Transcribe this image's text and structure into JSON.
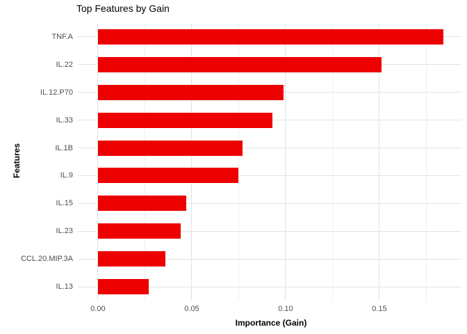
{
  "chart_data": {
    "type": "bar",
    "orientation": "horizontal",
    "title": "Top Features by Gain",
    "xlabel": "Importance (Gain)",
    "ylabel": "Features",
    "categories": [
      "TNF.A",
      "IL.22",
      "IL.12.P70",
      "IL.33",
      "IL.1B",
      "IL.9",
      "IL.15",
      "IL.23",
      "CCL.20.MIP.3A",
      "IL.13"
    ],
    "values": [
      0.184,
      0.151,
      0.099,
      0.093,
      0.077,
      0.075,
      0.047,
      0.044,
      0.036,
      0.027
    ],
    "x_ticks": [
      {
        "value": 0.0,
        "label": "0.00"
      },
      {
        "value": 0.05,
        "label": "0.05"
      },
      {
        "value": 0.1,
        "label": "0.10"
      },
      {
        "value": 0.15,
        "label": "0.15"
      }
    ],
    "x_minor_ticks": [
      0.025,
      0.075,
      0.125,
      0.175
    ],
    "xlim": [
      -0.0107,
      0.1937
    ],
    "grid": true,
    "legend": false,
    "colors": {
      "bar": "#ED0000",
      "grid_major": "#E2E2E2",
      "grid_minor": "#EFEFEF",
      "axis_text": "#4D4D4D",
      "title_text": "#000000"
    }
  }
}
